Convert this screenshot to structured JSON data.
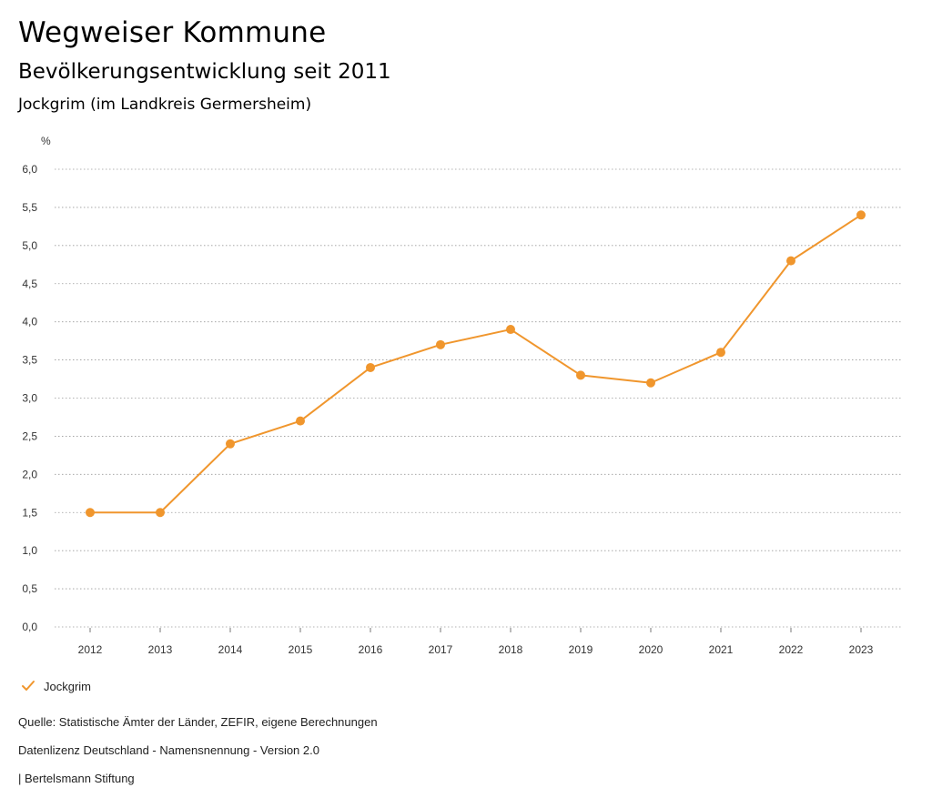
{
  "header": {
    "title": "Wegweiser Kommune",
    "subtitle": "Bevölkerungsentwicklung seit 2011",
    "region": "Jockgrim (im Landkreis Germersheim)"
  },
  "chart_data": {
    "type": "line",
    "title": "Bevölkerungsentwicklung seit 2011",
    "xlabel": "",
    "ylabel": "%",
    "categories": [
      "2012",
      "2013",
      "2014",
      "2015",
      "2016",
      "2017",
      "2018",
      "2019",
      "2020",
      "2021",
      "2022",
      "2023"
    ],
    "series": [
      {
        "name": "Jockgrim",
        "color": "#F0962D",
        "values": [
          1.5,
          1.5,
          2.4,
          2.7,
          3.4,
          3.7,
          3.9,
          3.3,
          3.2,
          3.6,
          4.8,
          5.4
        ]
      }
    ],
    "ylim": [
      0,
      6
    ],
    "yticks": [
      "0,0",
      "0,5",
      "1,0",
      "1,5",
      "2,0",
      "2,5",
      "3,0",
      "3,5",
      "4,0",
      "4,5",
      "5,0",
      "5,5",
      "6,0"
    ],
    "grid": true,
    "legend_position": "bottom-left"
  },
  "legend": {
    "label": "Jockgrim",
    "icon": "check-icon",
    "color": "#F0962D"
  },
  "footer": {
    "source": "Quelle: Statistische Ämter der Länder, ZEFIR, eigene Berechnungen",
    "license": "Datenlizenz Deutschland - Namensnennung - Version 2.0",
    "publisher": "| Bertelsmann Stiftung"
  }
}
